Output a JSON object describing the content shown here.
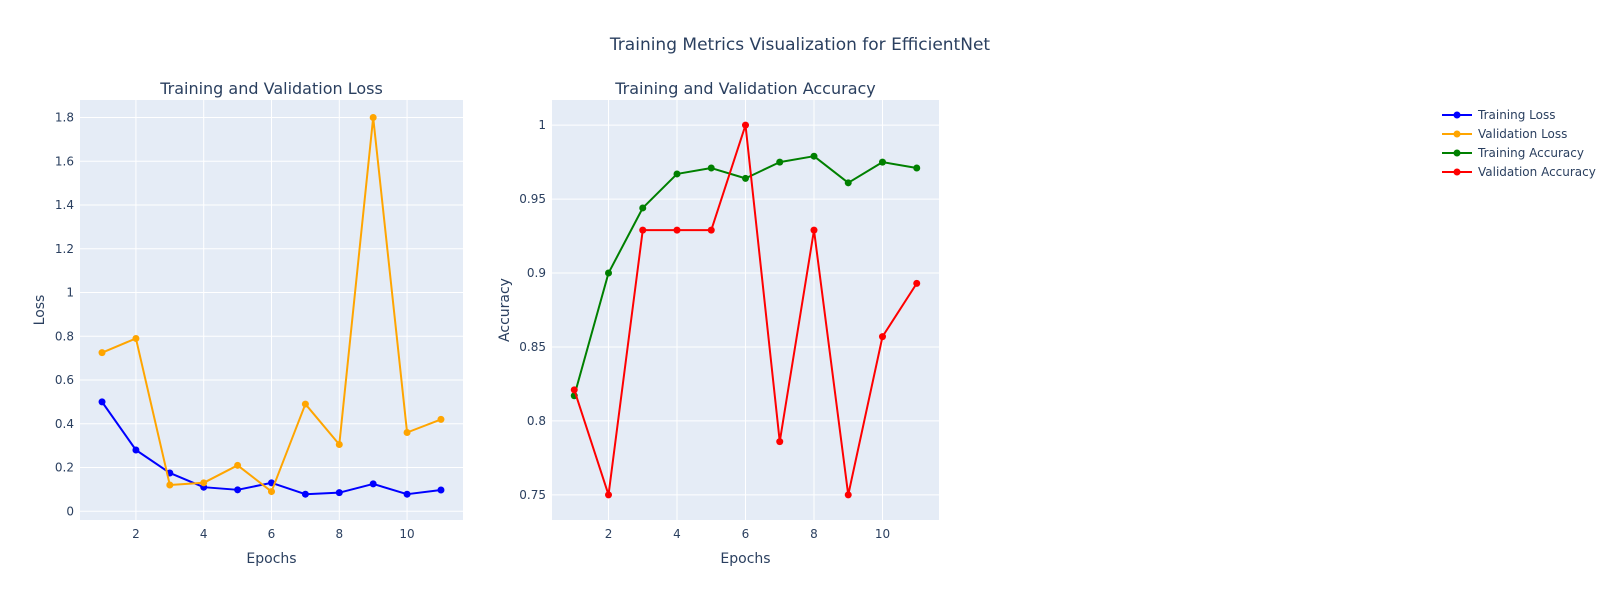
{
  "title": "Training Metrics Visualization for EfficientNet",
  "legend": {
    "placement": "top-right",
    "items": [
      {
        "label": "Training Loss",
        "color": "#0000ff"
      },
      {
        "label": "Validation Loss",
        "color": "#ffa500"
      },
      {
        "label": "Training Accuracy",
        "color": "#008000"
      },
      {
        "label": "Validation Accuracy",
        "color": "#ff0000"
      }
    ]
  },
  "chart_data": [
    {
      "type": "line",
      "title": "Training and Validation Loss",
      "xlabel": "Epochs",
      "ylabel": "Loss",
      "grid": true,
      "xlim": [
        0.35,
        11.65
      ],
      "ylim": [
        -0.04,
        1.88
      ],
      "xticks": [
        2,
        4,
        6,
        8,
        10
      ],
      "xtick_labels": [
        "2",
        "4",
        "6",
        "8",
        "10"
      ],
      "yticks": [
        0,
        0.2,
        0.4,
        0.6,
        0.8,
        1,
        1.2,
        1.4,
        1.6,
        1.8
      ],
      "ytick_labels": [
        "0",
        "0.2",
        "0.4",
        "0.6",
        "0.8",
        "1",
        "1.2",
        "1.4",
        "1.6",
        "1.8"
      ],
      "x": [
        1,
        2,
        3,
        4,
        5,
        6,
        7,
        8,
        9,
        10,
        11
      ],
      "series": [
        {
          "name": "Training Loss",
          "color": "#0000ff",
          "values": [
            0.5,
            0.28,
            0.175,
            0.11,
            0.098,
            0.13,
            0.078,
            0.085,
            0.125,
            0.078,
            0.097
          ]
        },
        {
          "name": "Validation Loss",
          "color": "#ffa500",
          "values": [
            0.725,
            0.79,
            0.12,
            0.13,
            0.21,
            0.09,
            0.49,
            0.305,
            1.8,
            0.36,
            0.42
          ]
        }
      ]
    },
    {
      "type": "line",
      "title": "Training and Validation Accuracy",
      "xlabel": "Epochs",
      "ylabel": "Accuracy",
      "grid": true,
      "xlim": [
        0.35,
        11.65
      ],
      "ylim": [
        0.733,
        1.017
      ],
      "xticks": [
        2,
        4,
        6,
        8,
        10
      ],
      "xtick_labels": [
        "2",
        "4",
        "6",
        "8",
        "10"
      ],
      "yticks": [
        0.75,
        0.8,
        0.85,
        0.9,
        0.95,
        1
      ],
      "ytick_labels": [
        "0.75",
        "0.8",
        "0.85",
        "0.9",
        "0.95",
        "1"
      ],
      "x": [
        1,
        2,
        3,
        4,
        5,
        6,
        7,
        8,
        9,
        10,
        11
      ],
      "series": [
        {
          "name": "Training Accuracy",
          "color": "#008000",
          "values": [
            0.817,
            0.9,
            0.944,
            0.967,
            0.971,
            0.964,
            0.975,
            0.979,
            0.961,
            0.975,
            0.971
          ]
        },
        {
          "name": "Validation Accuracy",
          "color": "#ff0000",
          "values": [
            0.821,
            0.75,
            0.929,
            0.929,
            0.929,
            1.0,
            0.786,
            0.929,
            0.75,
            0.857,
            0.893
          ]
        }
      ]
    }
  ]
}
